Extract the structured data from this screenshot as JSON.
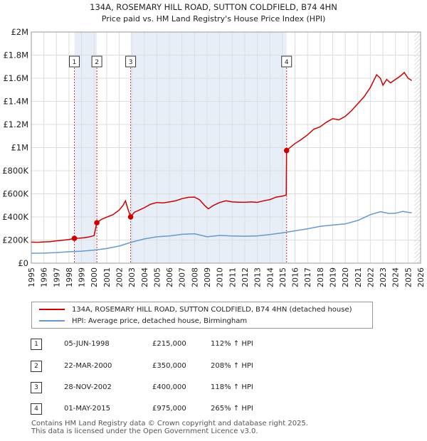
{
  "title_line1": "134A, ROSEMARY HILL ROAD, SUTTON COLDFIELD, B74 4HN",
  "title_line2": "Price paid vs. HM Land Registry's House Price Index (HPI)",
  "colors": {
    "property": "#cc0000",
    "hpi": "#6699cc",
    "shade": "#e8eef8",
    "grid": "#dddddd"
  },
  "chart_data": {
    "type": "line",
    "title": "134A, ROSEMARY HILL ROAD, SUTTON COLDFIELD, B74 4HN",
    "subtitle": "Price paid vs. HM Land Registry's House Price Index (HPI)",
    "xlabel": "",
    "ylabel": "",
    "xlim": [
      1995,
      2026
    ],
    "ylim": [
      0,
      2000000
    ],
    "yticks": [
      {
        "value": 0,
        "label": "£0"
      },
      {
        "value": 200000,
        "label": "£200K"
      },
      {
        "value": 400000,
        "label": "£400K"
      },
      {
        "value": 600000,
        "label": "£600K"
      },
      {
        "value": 800000,
        "label": "£800K"
      },
      {
        "value": 1000000,
        "label": "£1M"
      },
      {
        "value": 1200000,
        "label": "£1.2M"
      },
      {
        "value": 1400000,
        "label": "£1.4M"
      },
      {
        "value": 1600000,
        "label": "£1.6M"
      },
      {
        "value": 1800000,
        "label": "£1.8M"
      },
      {
        "value": 2000000,
        "label": "£2M"
      }
    ],
    "xticks": [
      1995,
      1996,
      1997,
      1998,
      1999,
      2000,
      2001,
      2002,
      2003,
      2004,
      2005,
      2006,
      2007,
      2008,
      2009,
      2010,
      2011,
      2012,
      2013,
      2014,
      2015,
      2016,
      2017,
      2018,
      2019,
      2020,
      2021,
      2022,
      2023,
      2024,
      2025,
      2026
    ],
    "grid": true,
    "shaded_ranges": [
      [
        1998.43,
        2000.22
      ],
      [
        2002.91,
        2015.33
      ]
    ],
    "hatched_from": 2025.5,
    "series": [
      {
        "name": "134A, ROSEMARY HILL ROAD, SUTTON COLDFIELD, B74 4HN (detached house)",
        "color": "#cc0000",
        "points": [
          [
            1995.0,
            182000
          ],
          [
            1995.5,
            181000
          ],
          [
            1996.0,
            184000
          ],
          [
            1996.5,
            186000
          ],
          [
            1997.0,
            193000
          ],
          [
            1997.5,
            198000
          ],
          [
            1998.0,
            205000
          ],
          [
            1998.43,
            215000
          ],
          [
            1998.8,
            216000
          ],
          [
            1999.2,
            220000
          ],
          [
            1999.6,
            227000
          ],
          [
            2000.0,
            238000
          ],
          [
            2000.22,
            350000
          ],
          [
            2000.6,
            380000
          ],
          [
            2001.0,
            398000
          ],
          [
            2001.5,
            420000
          ],
          [
            2002.0,
            460000
          ],
          [
            2002.3,
            500000
          ],
          [
            2002.5,
            540000
          ],
          [
            2002.7,
            465000
          ],
          [
            2002.91,
            400000
          ],
          [
            2003.2,
            440000
          ],
          [
            2003.6,
            460000
          ],
          [
            2004.0,
            480000
          ],
          [
            2004.5,
            510000
          ],
          [
            2005.0,
            525000
          ],
          [
            2005.5,
            522000
          ],
          [
            2006.0,
            530000
          ],
          [
            2006.5,
            540000
          ],
          [
            2007.0,
            558000
          ],
          [
            2007.5,
            570000
          ],
          [
            2008.0,
            572000
          ],
          [
            2008.4,
            548000
          ],
          [
            2008.8,
            500000
          ],
          [
            2009.1,
            470000
          ],
          [
            2009.5,
            500000
          ],
          [
            2010.0,
            525000
          ],
          [
            2010.5,
            540000
          ],
          [
            2011.0,
            530000
          ],
          [
            2011.5,
            528000
          ],
          [
            2012.0,
            527000
          ],
          [
            2012.5,
            530000
          ],
          [
            2013.0,
            526000
          ],
          [
            2013.5,
            540000
          ],
          [
            2014.0,
            550000
          ],
          [
            2014.5,
            572000
          ],
          [
            2015.0,
            580000
          ],
          [
            2015.3,
            590000
          ],
          [
            2015.33,
            975000
          ],
          [
            2015.7,
            1010000
          ],
          [
            2016.0,
            1035000
          ],
          [
            2016.5,
            1070000
          ],
          [
            2017.0,
            1110000
          ],
          [
            2017.5,
            1160000
          ],
          [
            2018.0,
            1180000
          ],
          [
            2018.5,
            1220000
          ],
          [
            2019.0,
            1250000
          ],
          [
            2019.5,
            1240000
          ],
          [
            2020.0,
            1270000
          ],
          [
            2020.5,
            1320000
          ],
          [
            2021.0,
            1380000
          ],
          [
            2021.5,
            1440000
          ],
          [
            2022.0,
            1520000
          ],
          [
            2022.5,
            1630000
          ],
          [
            2022.8,
            1600000
          ],
          [
            2023.0,
            1540000
          ],
          [
            2023.3,
            1590000
          ],
          [
            2023.6,
            1560000
          ],
          [
            2024.0,
            1590000
          ],
          [
            2024.4,
            1620000
          ],
          [
            2024.7,
            1650000
          ],
          [
            2025.0,
            1600000
          ],
          [
            2025.3,
            1580000
          ]
        ]
      },
      {
        "name": "HPI: Average price, detached house, Birmingham",
        "color": "#6699cc",
        "points": [
          [
            1995.0,
            86000
          ],
          [
            1996.0,
            87000
          ],
          [
            1997.0,
            92000
          ],
          [
            1998.0,
            99000
          ],
          [
            1999.0,
            104000
          ],
          [
            2000.0,
            113000
          ],
          [
            2001.0,
            127000
          ],
          [
            2002.0,
            148000
          ],
          [
            2003.0,
            182000
          ],
          [
            2004.0,
            210000
          ],
          [
            2005.0,
            228000
          ],
          [
            2006.0,
            235000
          ],
          [
            2007.0,
            250000
          ],
          [
            2008.0,
            255000
          ],
          [
            2009.0,
            228000
          ],
          [
            2010.0,
            240000
          ],
          [
            2011.0,
            235000
          ],
          [
            2012.0,
            233000
          ],
          [
            2013.0,
            236000
          ],
          [
            2014.0,
            248000
          ],
          [
            2015.0,
            262000
          ],
          [
            2016.0,
            280000
          ],
          [
            2017.0,
            298000
          ],
          [
            2018.0,
            318000
          ],
          [
            2019.0,
            330000
          ],
          [
            2020.0,
            340000
          ],
          [
            2021.0,
            370000
          ],
          [
            2022.0,
            420000
          ],
          [
            2022.8,
            445000
          ],
          [
            2023.5,
            430000
          ],
          [
            2024.0,
            432000
          ],
          [
            2024.6,
            448000
          ],
          [
            2025.0,
            440000
          ],
          [
            2025.3,
            436000
          ]
        ]
      }
    ],
    "sales": [
      {
        "num": "1",
        "x": 1998.43,
        "y": 215000
      },
      {
        "num": "2",
        "x": 2000.22,
        "y": 350000
      },
      {
        "num": "3",
        "x": 2002.91,
        "y": 400000
      },
      {
        "num": "4",
        "x": 2015.33,
        "y": 975000
      }
    ]
  },
  "legend": {
    "property_label": "134A, ROSEMARY HILL ROAD, SUTTON COLDFIELD, B74 4HN (detached house)",
    "hpi_label": "HPI: Average price, detached house, Birmingham"
  },
  "table": [
    {
      "num": "1",
      "date": "05-JUN-1998",
      "price": "£215,000",
      "hpi": "112% ↑ HPI"
    },
    {
      "num": "2",
      "date": "22-MAR-2000",
      "price": "£350,000",
      "hpi": "208% ↑ HPI"
    },
    {
      "num": "3",
      "date": "28-NOV-2002",
      "price": "£400,000",
      "hpi": "118% ↑ HPI"
    },
    {
      "num": "4",
      "date": "01-MAY-2015",
      "price": "£975,000",
      "hpi": "265% ↑ HPI"
    }
  ],
  "footer_line1": "Contains HM Land Registry data © Crown copyright and database right 2025.",
  "footer_line2": "This data is licensed under the Open Government Licence v3.0."
}
